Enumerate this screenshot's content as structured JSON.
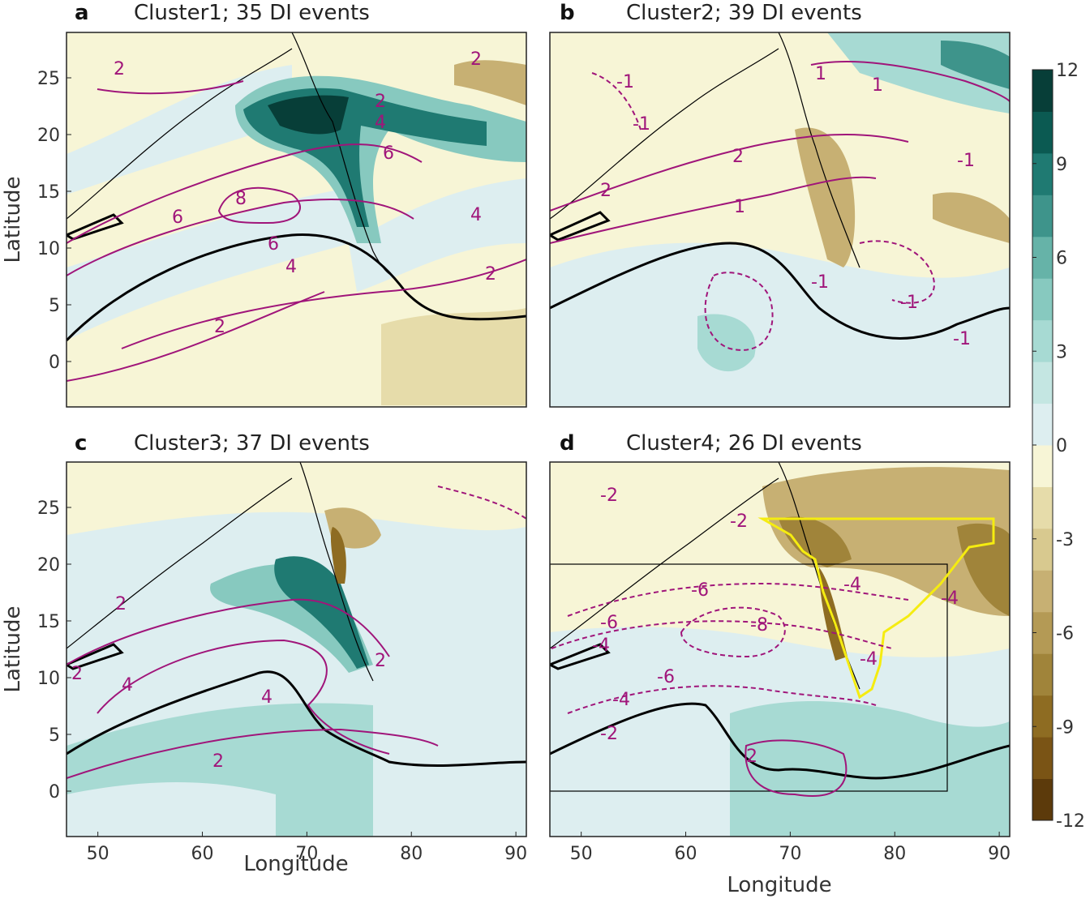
{
  "chart_data": [
    {
      "type": "heatmap",
      "panel_letter": "a",
      "title": "Cluster1; 35 DI events",
      "xlabel": "",
      "ylabel": "Latitude",
      "xlim": [
        47,
        91
      ],
      "ylim": [
        -4,
        29
      ],
      "xticks": [
        "50",
        "60",
        "70",
        "80",
        "90"
      ],
      "yticks": [
        "0",
        "5",
        "10",
        "15",
        "20",
        "25"
      ],
      "contour_labels": [
        "2",
        "2",
        "2",
        "4",
        "4",
        "4",
        "6",
        "6",
        "6",
        "8",
        "2",
        "2"
      ]
    },
    {
      "type": "heatmap",
      "panel_letter": "b",
      "title": "Cluster2; 39 DI events",
      "xlabel": "",
      "ylabel": "",
      "xlim": [
        47,
        91
      ],
      "ylim": [
        -4,
        29
      ],
      "contour_labels": [
        "2",
        "2",
        "1",
        "-1",
        "-1",
        "1",
        "-1",
        "-1",
        "-1",
        "1",
        "-1"
      ]
    },
    {
      "type": "heatmap",
      "panel_letter": "c",
      "title": "Cluster3; 37 DI events",
      "xlabel": "Longitude",
      "ylabel": "Latitude",
      "xlim": [
        47,
        91
      ],
      "ylim": [
        -4,
        29
      ],
      "xticks": [
        "50",
        "60",
        "70",
        "80",
        "90"
      ],
      "yticks": [
        "0",
        "5",
        "10",
        "15",
        "20",
        "25"
      ],
      "contour_labels": [
        "2",
        "2",
        "4",
        "4",
        "2",
        "2"
      ]
    },
    {
      "type": "heatmap",
      "panel_letter": "d",
      "title": "Cluster4; 26 DI events",
      "xlabel": "Longitude",
      "ylabel": "",
      "xlim": [
        47,
        91
      ],
      "ylim": [
        -4,
        29
      ],
      "xticks": [
        "50",
        "60",
        "70",
        "80",
        "90"
      ],
      "contour_labels": [
        "-2",
        "-2",
        "-6",
        "-4",
        "-6",
        "-8",
        "-4",
        "-6",
        "-4",
        "-2",
        "-4",
        "-4",
        "2"
      ],
      "box_region": {
        "lon": [
          47,
          85
        ],
        "lat": [
          0,
          20
        ]
      }
    }
  ],
  "colorbar": {
    "range": [
      -12,
      12
    ],
    "ticks": [
      "12",
      "9",
      "6",
      "3",
      "0",
      "-3",
      "-6",
      "-9",
      "-12"
    ],
    "colors": [
      "#5c3a0b",
      "#7a5415",
      "#8e6c22",
      "#a0843a",
      "#b49a55",
      "#c7b073",
      "#d8c98f",
      "#e6dcaa",
      "#f7f5d6",
      "#ddeef0",
      "#c4e6e2",
      "#a7dad3",
      "#87c9bf",
      "#66b3a8",
      "#3e948b",
      "#1f7a72",
      "#0b5a52",
      "#073e38"
    ]
  },
  "colors": {
    "contour": "#a0157a",
    "coast": "#000000",
    "highlight": "#f5ec10",
    "background": "#f7f5d6"
  }
}
